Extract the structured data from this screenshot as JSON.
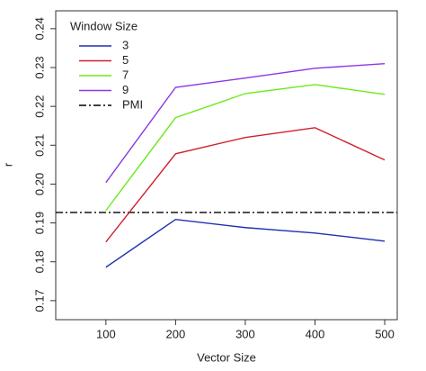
{
  "chart_data": {
    "type": "line",
    "x_label": "Vector Size",
    "y_label": "r",
    "x": [
      100,
      200,
      300,
      400,
      500
    ],
    "series": [
      {
        "name": "3",
        "color": "#1f2fb0",
        "values": [
          0.1786,
          0.1909,
          0.1888,
          0.1874,
          0.1853
        ]
      },
      {
        "name": "5",
        "color": "#d0202e",
        "values": [
          0.1851,
          0.2078,
          0.212,
          0.2145,
          0.2062
        ]
      },
      {
        "name": "7",
        "color": "#6ee81c",
        "values": [
          0.1932,
          0.2171,
          0.2233,
          0.2256,
          0.2231
        ]
      },
      {
        "name": "9",
        "color": "#8b38e0",
        "values": [
          0.2004,
          0.2249,
          0.2273,
          0.2298,
          0.231
        ]
      }
    ],
    "hline": {
      "name": "PMI",
      "value": 0.1927,
      "color": "#000000",
      "dash": "8 3 2 3"
    },
    "legend_title": "Window Size",
    "legend": "top-left",
    "xlim": [
      28,
      518
    ],
    "xticks": [
      100,
      200,
      300,
      400,
      500
    ],
    "ylim": [
      0.1651,
      0.2446
    ],
    "yticks": [
      0.17,
      0.18,
      0.19,
      0.2,
      0.21,
      0.22,
      0.23,
      0.24
    ],
    "ytick_labels": [
      "0.17",
      "0.18",
      "0.19",
      "0.20",
      "0.21",
      "0.22",
      "0.23",
      "0.24"
    ]
  }
}
